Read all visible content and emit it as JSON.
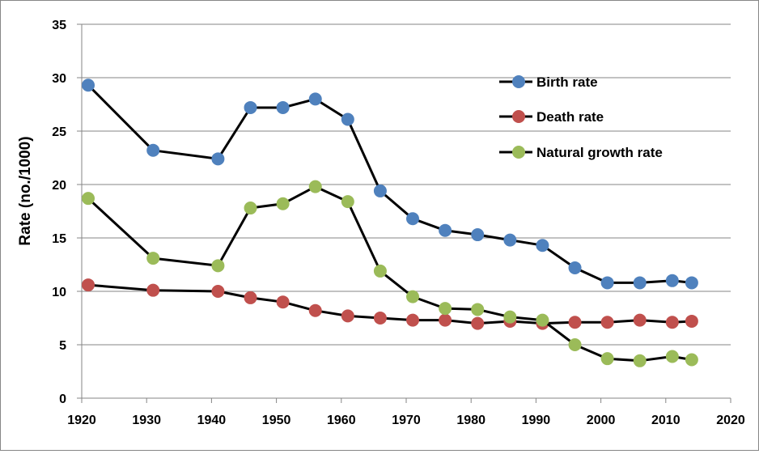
{
  "chart_data": {
    "type": "line",
    "title": "",
    "xlabel": "",
    "ylabel": "Rate (no./1000)",
    "xlim": [
      1920,
      2020
    ],
    "ylim": [
      0,
      35
    ],
    "xticks": [
      1920,
      1930,
      1940,
      1950,
      1960,
      1970,
      1980,
      1990,
      2000,
      2010,
      2020
    ],
    "yticks": [
      0,
      5,
      10,
      15,
      20,
      25,
      30,
      35
    ],
    "grid": "horizontal",
    "legend": "top-right",
    "series": [
      {
        "name": "Birth rate",
        "color": "#4f81bd",
        "x": [
          1921,
          1931,
          1941,
          1946,
          1951,
          1956,
          1961,
          1966,
          1971,
          1976,
          1981,
          1986,
          1991,
          1996,
          2001,
          2006,
          2011,
          2014
        ],
        "values": [
          29.3,
          23.2,
          22.4,
          27.2,
          27.2,
          28.0,
          26.1,
          19.4,
          16.8,
          15.7,
          15.3,
          14.8,
          14.3,
          12.2,
          10.8,
          10.8,
          11.0,
          10.8
        ]
      },
      {
        "name": "Death rate",
        "color": "#c0504d",
        "x": [
          1921,
          1931,
          1941,
          1946,
          1951,
          1956,
          1961,
          1966,
          1971,
          1976,
          1981,
          1986,
          1991,
          1996,
          2001,
          2006,
          2011,
          2014
        ],
        "values": [
          10.6,
          10.1,
          10.0,
          9.4,
          9.0,
          8.2,
          7.7,
          7.5,
          7.3,
          7.3,
          7.0,
          7.2,
          7.0,
          7.1,
          7.1,
          7.3,
          7.1,
          7.2
        ]
      },
      {
        "name": "Natural growth rate",
        "color": "#9bbb59",
        "x": [
          1921,
          1931,
          1941,
          1946,
          1951,
          1956,
          1961,
          1966,
          1971,
          1976,
          1981,
          1986,
          1991,
          1996,
          2001,
          2006,
          2011,
          2014
        ],
        "values": [
          18.7,
          13.1,
          12.4,
          17.8,
          18.2,
          19.8,
          18.4,
          11.9,
          9.5,
          8.4,
          8.3,
          7.6,
          7.3,
          5.0,
          3.7,
          3.5,
          3.9,
          3.6
        ]
      }
    ]
  }
}
